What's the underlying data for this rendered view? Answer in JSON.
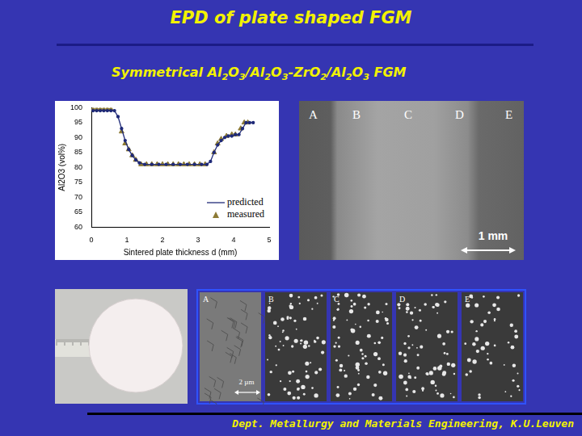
{
  "title": "EPD of plate shaped FGM",
  "subtitle": "Symmetrical Al2O3/Al2O3-ZrO2/Al2O3 FGM",
  "chart_data": {
    "type": "scatter",
    "x_label": "Sintered plate thickness d (mm)",
    "y_label": "Al2O3 (vol%)",
    "xlim": [
      0,
      5
    ],
    "xticks": [
      0,
      1,
      2,
      3,
      4,
      5
    ],
    "ylim": [
      60,
      100
    ],
    "yticks": [
      60,
      65,
      70,
      75,
      80,
      85,
      90,
      95,
      100
    ],
    "grid": false,
    "legend": "lower right",
    "series": [
      {
        "name": "predicted",
        "color": "#1f2a78",
        "type": "line",
        "line_style": "solid",
        "marker": "circle",
        "x": [
          0.05,
          0.15,
          0.25,
          0.35,
          0.45,
          0.55,
          0.65,
          0.75,
          0.85,
          0.95,
          1.05,
          1.15,
          1.25,
          1.35,
          1.5,
          1.7,
          1.9,
          2.1,
          2.3,
          2.5,
          2.7,
          2.9,
          3.1,
          3.25,
          3.35,
          3.45,
          3.55,
          3.65,
          3.75,
          3.85,
          3.95,
          4.05,
          4.15,
          4.25,
          4.35,
          4.45,
          4.55
        ],
        "values": [
          99,
          99,
          99,
          99,
          99,
          99,
          99,
          97,
          93,
          89,
          86,
          84,
          82.5,
          81.5,
          81,
          81,
          81,
          81,
          81,
          81,
          81,
          81,
          81,
          81,
          82,
          85,
          87.5,
          89,
          90,
          90.5,
          90.5,
          91,
          91,
          93,
          95,
          95,
          95
        ]
      },
      {
        "name": "measured",
        "color": "#8c7a34",
        "type": "scatter",
        "line_style": "none",
        "marker": "triangle",
        "x": [
          0.05,
          0.15,
          0.25,
          0.35,
          0.45,
          0.55,
          0.85,
          0.95,
          1.05,
          1.15,
          1.25,
          1.4,
          1.55,
          1.7,
          1.85,
          2.0,
          2.15,
          2.3,
          2.45,
          2.6,
          2.75,
          2.9,
          3.05,
          3.2,
          3.45,
          3.55,
          3.65,
          3.8,
          3.95,
          4.05,
          4.2,
          4.3,
          4.4
        ],
        "values": [
          99.5,
          99.5,
          99.5,
          99.5,
          99.5,
          99.5,
          92,
          88,
          86,
          84,
          82.5,
          81,
          81,
          81,
          81,
          81,
          81,
          81,
          81,
          81,
          81,
          81,
          81,
          81,
          85,
          88,
          89.5,
          90.5,
          91,
          91,
          93,
          95,
          95
        ]
      }
    ]
  },
  "macro_image": {
    "labels": [
      "A",
      "B",
      "C",
      "D",
      "E"
    ],
    "scale": "1 mm"
  },
  "micro_images": {
    "labels": [
      "A",
      "B",
      "C",
      "D",
      "E"
    ],
    "scale": "2 µm"
  },
  "footer": "Dept. Metallurgy and Materials Engineering, K.U.Leuven"
}
